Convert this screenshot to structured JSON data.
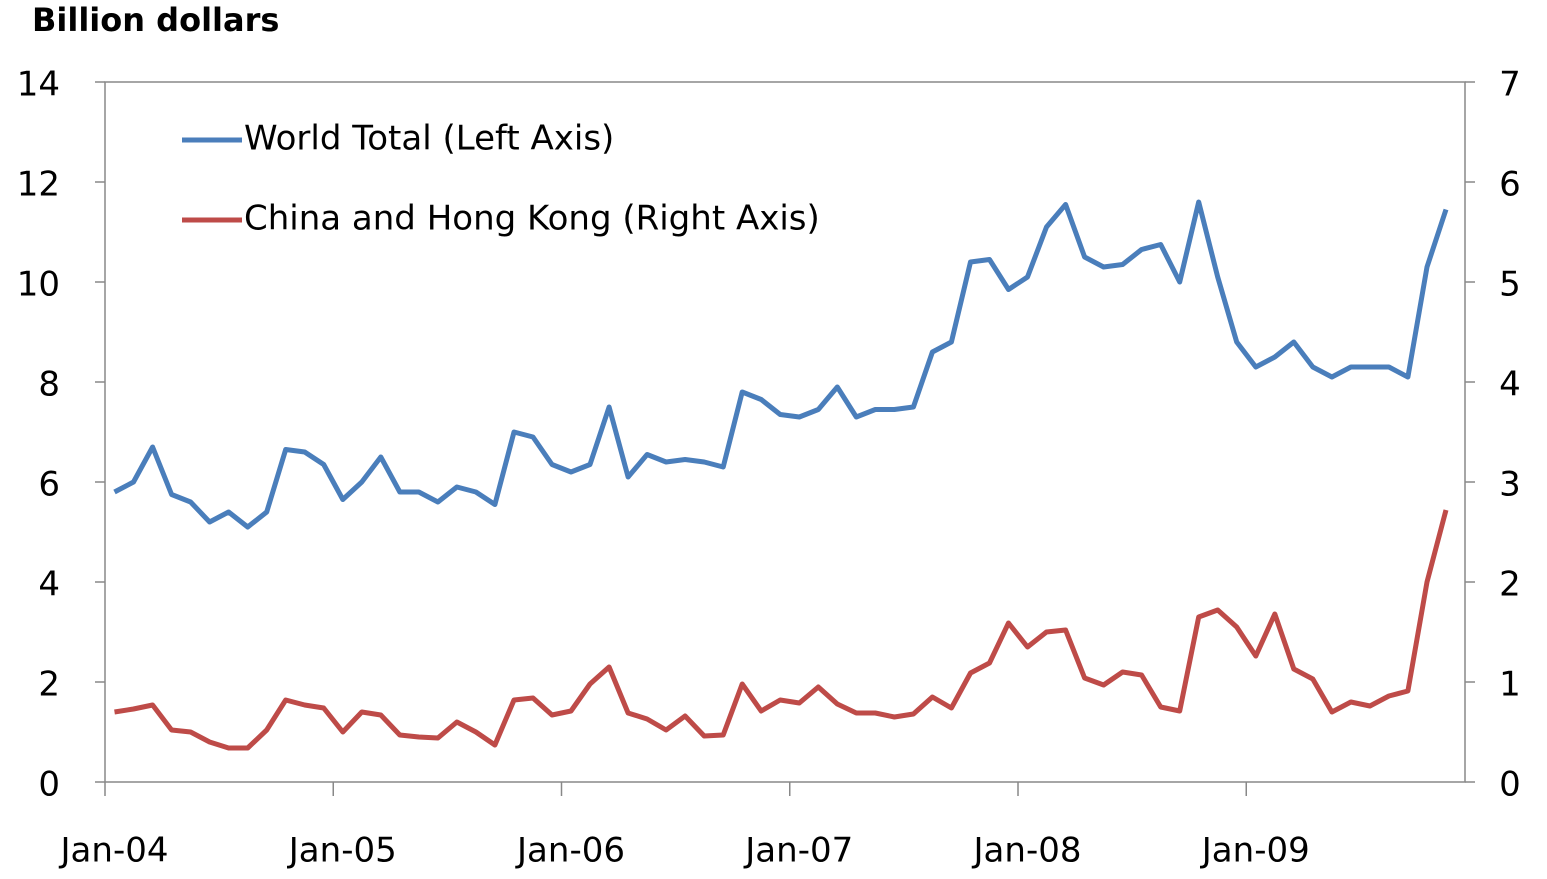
{
  "chart_data": {
    "type": "line",
    "y_axis_title": "Billion dollars",
    "categories": [
      "Jan-04",
      null,
      null,
      null,
      null,
      null,
      null,
      null,
      null,
      null,
      null,
      null,
      "Jan-05",
      null,
      null,
      null,
      null,
      null,
      null,
      null,
      null,
      null,
      null,
      null,
      "Jan-06",
      null,
      null,
      null,
      null,
      null,
      null,
      null,
      null,
      null,
      null,
      null,
      "Jan-07",
      null,
      null,
      null,
      null,
      null,
      null,
      null,
      null,
      null,
      null,
      null,
      "Jan-08",
      null,
      null,
      null,
      null,
      null,
      null,
      null,
      null,
      null,
      null,
      null,
      "Jan-09",
      null,
      null,
      null,
      null,
      null,
      null,
      null,
      null,
      null,
      null
    ],
    "series": [
      {
        "name": "World Total (Left Axis)",
        "color": "#4a7ebb",
        "axis": "y",
        "values": [
          5.8,
          6.0,
          6.7,
          5.75,
          5.6,
          5.2,
          5.4,
          5.1,
          5.4,
          6.65,
          6.6,
          6.35,
          5.65,
          6.0,
          6.5,
          5.8,
          5.8,
          5.6,
          5.9,
          5.8,
          5.55,
          7.0,
          6.9,
          6.35,
          6.2,
          6.35,
          7.5,
          6.1,
          6.55,
          6.4,
          6.45,
          6.4,
          6.3,
          7.8,
          7.65,
          7.35,
          7.3,
          7.45,
          7.9,
          7.3,
          7.45,
          7.45,
          7.5,
          8.6,
          8.8,
          10.4,
          10.45,
          9.85,
          10.1,
          11.1,
          11.55,
          10.5,
          10.3,
          10.35,
          10.65,
          10.75,
          10.0,
          11.6,
          10.1,
          8.8,
          8.3,
          8.5,
          8.8,
          8.3,
          8.1,
          8.3,
          8.3,
          8.3,
          8.1,
          10.3,
          11.45
        ]
      },
      {
        "name": "China and Hong Kong (Right Axis)",
        "color": "#be4b48",
        "axis": "y2",
        "values": [
          0.7,
          0.73,
          0.77,
          0.52,
          0.5,
          0.4,
          0.34,
          0.34,
          0.52,
          0.82,
          0.77,
          0.74,
          0.5,
          0.7,
          0.67,
          0.47,
          0.45,
          0.44,
          0.6,
          0.5,
          0.37,
          0.82,
          0.84,
          0.67,
          0.71,
          0.98,
          1.15,
          0.69,
          0.63,
          0.52,
          0.66,
          0.46,
          0.47,
          0.98,
          0.71,
          0.82,
          0.79,
          0.95,
          0.78,
          0.69,
          0.69,
          0.65,
          0.68,
          0.85,
          0.74,
          1.09,
          1.19,
          1.59,
          1.35,
          1.5,
          1.52,
          1.04,
          0.97,
          1.1,
          1.07,
          0.75,
          0.71,
          1.65,
          1.72,
          1.55,
          1.26,
          1.68,
          1.13,
          1.03,
          0.7,
          0.8,
          0.76,
          0.86,
          0.91,
          2.0,
          2.72
        ]
      }
    ],
    "ylim": [
      0,
      14
    ],
    "yticks": [
      0,
      2,
      4,
      6,
      8,
      10,
      12,
      14
    ],
    "y2lim": [
      0,
      7
    ],
    "y2ticks": [
      0,
      1,
      2,
      3,
      4,
      5,
      6,
      7
    ],
    "legend": "upper left",
    "grid": false
  }
}
